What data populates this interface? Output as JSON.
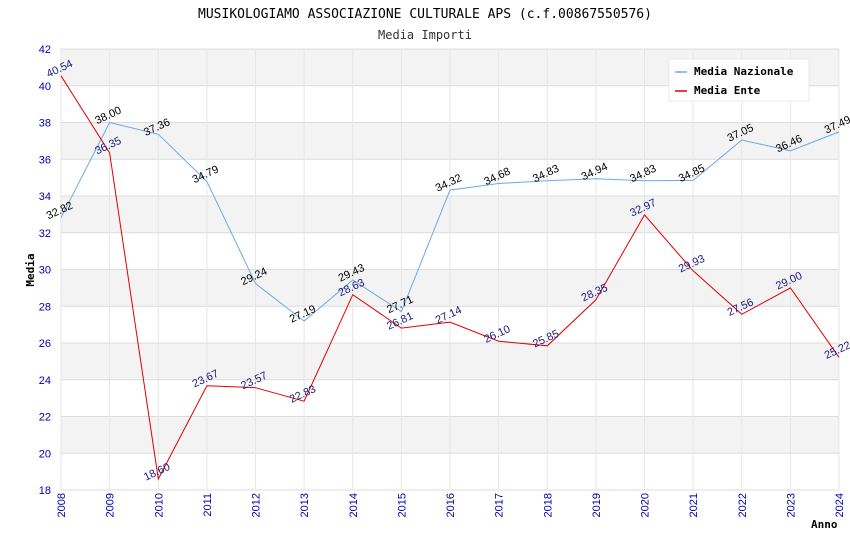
{
  "chart_data": {
    "type": "line",
    "title": "MUSIKOLOGIAMO ASSOCIAZIONE CULTURALE APS (c.f.00867550576)",
    "subtitle": "Media Importi",
    "xlabel": "Anno",
    "ylabel": "Media",
    "x": [
      "2008",
      "2009",
      "2010",
      "2011",
      "2012",
      "2013",
      "2014",
      "2015",
      "2016",
      "2017",
      "2018",
      "2019",
      "2020",
      "2021",
      "2022",
      "2023",
      "2024"
    ],
    "ylim": [
      18,
      42
    ],
    "yticks": [
      "18",
      "20",
      "22",
      "24",
      "26",
      "28",
      "30",
      "32",
      "34",
      "36",
      "38",
      "40",
      "42"
    ],
    "grid": true,
    "legend_position": "top-right",
    "series": [
      {
        "name": "Media Nazionale",
        "color": "#6aaae8",
        "values": [
          32.82,
          38.0,
          37.36,
          34.79,
          29.24,
          27.19,
          29.43,
          27.71,
          34.32,
          34.68,
          34.83,
          34.94,
          34.83,
          34.85,
          37.05,
          36.46,
          37.49
        ],
        "labels": [
          "32.82",
          "38.00",
          "37.36",
          "34.79",
          "29.24",
          "27.19",
          "29.43",
          "27.71",
          "34.32",
          "34.68",
          "34.83",
          "34.94",
          "34.83",
          "34.85",
          "37.05",
          "36.46",
          "37.49"
        ]
      },
      {
        "name": "Media Ente",
        "color": "#e00000",
        "values": [
          40.54,
          36.35,
          18.6,
          23.67,
          23.57,
          22.83,
          28.63,
          26.81,
          27.14,
          26.1,
          25.85,
          28.35,
          32.97,
          29.93,
          27.56,
          29.0,
          25.22
        ],
        "labels": [
          "40.54",
          "36.35",
          "18.60",
          "23.67",
          "23.57",
          "22.83",
          "28.63",
          "26.81",
          "27.14",
          "26.10",
          "25.85",
          "28.35",
          "32.97",
          "29.93",
          "27.56",
          "29.00",
          "25.22"
        ]
      }
    ]
  }
}
